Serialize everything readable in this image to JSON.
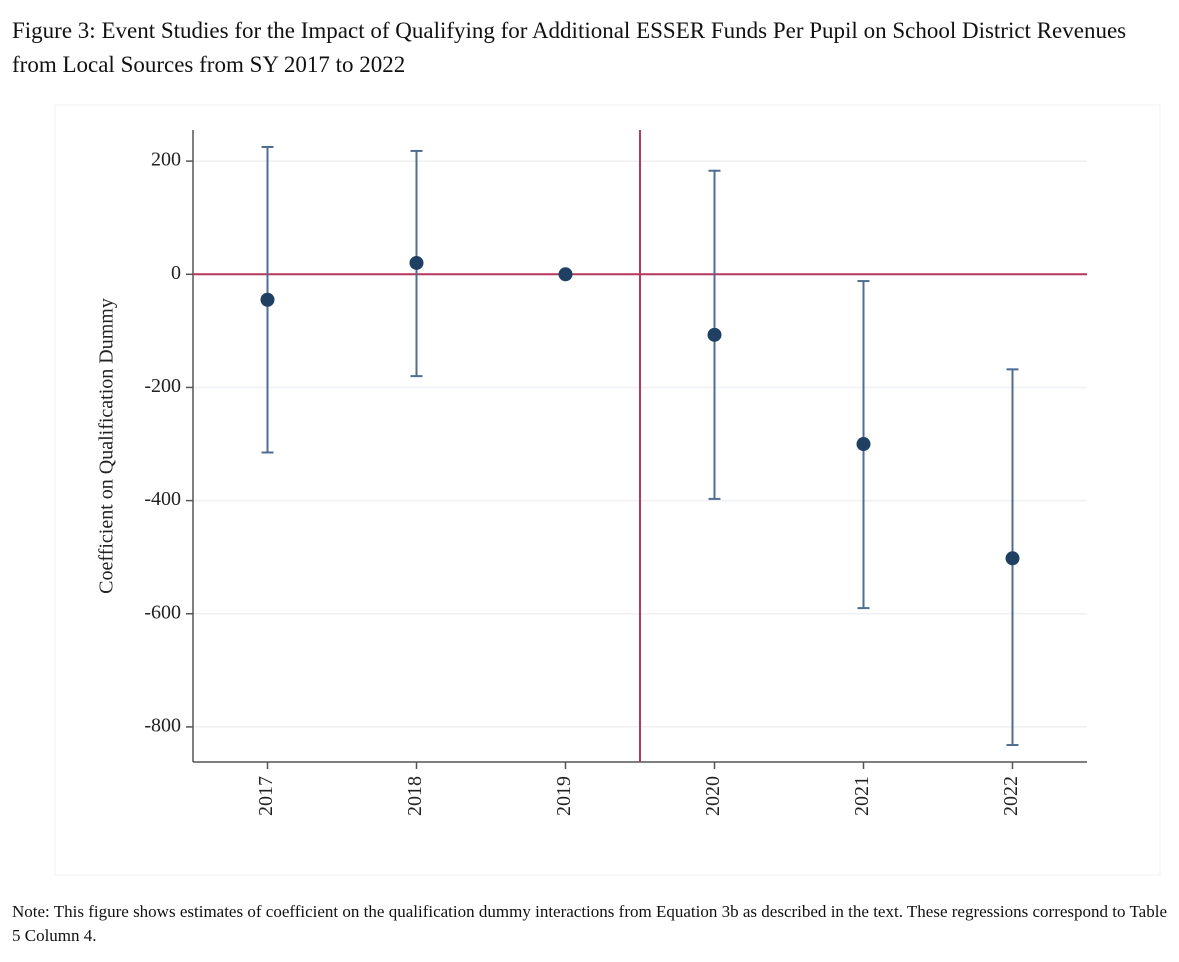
{
  "chart_data": {
    "type": "errorbar",
    "title": "Figure 3: Event Studies for the Impact of Qualifying for Additional ESSER Funds Per Pupil on School District Revenues from Local Sources from SY 2017 to 2022",
    "y_label": "Coefficient on Qualification Dummy",
    "x": [
      2017,
      2018,
      2019,
      2020,
      2021,
      2022
    ],
    "series": [
      {
        "color": "#1f3f63",
        "bar_color": "#4f6d91",
        "values": [
          -45,
          20,
          0,
          -107,
          -300,
          -502
        ],
        "lower": [
          -315,
          -180,
          null,
          -397,
          -590,
          -832
        ],
        "upper": [
          225,
          218,
          null,
          183,
          -12,
          -168
        ]
      }
    ],
    "xlim": [
      2016.5,
      2022.5
    ],
    "xticks": [
      2017,
      2018,
      2019,
      2020,
      2021,
      2022
    ],
    "ylim": [
      -862,
      255
    ],
    "yticks": [
      200,
      0,
      -200,
      -400,
      -600,
      -800
    ],
    "grid": true,
    "reference_lines": {
      "y": 0,
      "x": 2019.5,
      "color": "#b5375a"
    },
    "note": "Note: This figure shows estimates of coefficient on the qualification dummy interactions from Equation 3b as described in the text. These regressions correspond to Table 5 Column 4."
  }
}
